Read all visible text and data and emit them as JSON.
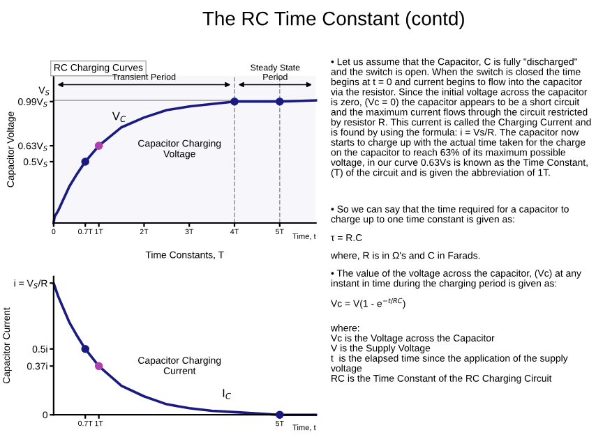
{
  "chart_data": [
    {
      "type": "line",
      "title": "RC Charging Curves",
      "xlabel": "Time Constants, T",
      "ylabel": "Capacitor Voltage",
      "xlim": [
        0,
        5.8
      ],
      "xticks": [
        0,
        {
          "value": 0.7,
          "label": "0.7T"
        },
        {
          "value": 1,
          "label": "1T"
        },
        {
          "value": 2,
          "label": "2T"
        },
        {
          "value": 3,
          "label": "3T"
        },
        {
          "value": 4,
          "label": "4T"
        },
        {
          "value": 5,
          "label": "5T"
        }
      ],
      "ylim": [
        0,
        1.2
      ],
      "yticks": [
        {
          "value": 0.5,
          "label": "0.5V$_{S}$"
        },
        {
          "value": 0.63,
          "label": "0.63V$_{S}$"
        },
        {
          "value": 0.99,
          "label": "0.99V$_{S}$"
        }
      ],
      "series": [
        {
          "type": "line",
          "color": "#1a1a80",
          "marker": "none",
          "x": [
            0,
            0.02,
            0.1,
            0.2,
            0.35,
            0.5,
            0.7,
            1,
            1.5,
            2,
            2.5,
            3,
            3.5,
            4,
            5,
            5.8
          ],
          "values": [
            0,
            0.05,
            0.1,
            0.18,
            0.3,
            0.39,
            0.5,
            0.63,
            0.78,
            0.86,
            0.92,
            0.95,
            0.97,
            0.99,
            0.99,
            1
          ]
        },
        {
          "type": "scatter",
          "marker": "circle",
          "x": [
            0.7,
            1,
            4,
            5
          ],
          "values": [
            0.5,
            0.63,
            0.99,
            0.99
          ],
          "colors": [
            "#1a1a80",
            "#b040b0",
            "#1a1a80",
            "#1a1a80"
          ]
        }
      ],
      "ref_lines": [
        {
          "axis": "y",
          "value": 1,
          "label": "V$_{S}$",
          "color": "#999999",
          "line_style": "solid"
        },
        {
          "axis": "x",
          "value": 4,
          "color": "#999999",
          "line_style": "dashed"
        },
        {
          "axis": "x",
          "value": 5,
          "color": "#999999",
          "line_style": "dashed"
        }
      ],
      "bands": [
        {
          "axis": "x",
          "from": 0,
          "to": 4,
          "label": "Transient Period",
          "color": "#f6f6fb"
        },
        {
          "axis": "x",
          "from": 4,
          "to": 5.8,
          "label": "Steady State\nPeriod",
          "color": "#f6f6fb"
        }
      ],
      "annotations": [
        "V$_{C}$",
        "Capacitor Charging\nVoltage",
        "Time, t"
      ],
      "grid": false
    },
    {
      "type": "line",
      "ylabel": "Capacitor Current",
      "xlim": [
        0,
        5.8
      ],
      "xticks": [
        {
          "value": 0.7,
          "label": "0.7T"
        },
        {
          "value": 1,
          "label": "1T"
        },
        {
          "value": 5,
          "label": "5T"
        }
      ],
      "ylim": [
        0,
        1.05
      ],
      "yticks": [
        0,
        {
          "value": 0.37,
          "label": "0.37i"
        },
        {
          "value": 0.5,
          "label": "0.5i"
        },
        {
          "value": 1,
          "label": "i = V$_{S}$/R"
        }
      ],
      "series": [
        {
          "type": "line",
          "color": "#1a1a80",
          "marker": "none",
          "x": [
            0,
            0.1,
            0.2,
            0.35,
            0.5,
            0.7,
            1,
            1.5,
            2,
            2.5,
            3,
            3.5,
            4,
            4.5,
            5,
            5.8
          ],
          "values": [
            1,
            0.9,
            0.82,
            0.7,
            0.61,
            0.5,
            0.37,
            0.22,
            0.14,
            0.08,
            0.05,
            0.03,
            0.02,
            0.01,
            0,
            0
          ]
        },
        {
          "type": "scatter",
          "marker": "circle",
          "x": [
            0.7,
            1,
            5
          ],
          "values": [
            0.5,
            0.37,
            0
          ],
          "colors": [
            "#1a1a80",
            "#b040b0",
            "#1a1a80"
          ]
        }
      ],
      "annotations": [
        "Capacitor Charging\nCurrent",
        "I$_{C}$",
        "Time, t"
      ],
      "grid": false
    },
    {
      "type": "other",
      "title": "The RC Time Constant (contd)",
      "annotations": [
        "• Let us assume that the Capacitor, C is fully \"discharged\" and the switch is open. When the switch is closed the time begins at t = 0 and current begins to flow into the capacitor via the resistor. Since the initial voltage across the capacitor is zero, (Vc = 0) the capacitor appears to be a short circuit and the maximum current flows through the circuit restricted by resistor R. This current is called the Charging Current and is found by using the formula: i = Vs/R. The capacitor now starts to charge up with the actual time taken for the charge on the capacitor to reach 63% of its maximum possible voltage, in our curve 0.63Vs is known as the Time Constant, (T) of the circuit and is given the abbreviation of 1T.",
        "• So we can say that the time required for a capacitor to charge up to one time constant is given as:",
        "τ = R.C",
        "where, R is in Ω's and C in Farads.",
        "• The value of the voltage across the capacitor, (Vc) at any instant in time during the charging period is given as:",
        "Vc = V(1 - e$^{−t/RC}$)",
        "where:\nVc is the Voltage across the Capacitor\nV is the Supply Voltage\nt  is the elapsed time since the application of the supply voltage\nRC is the Time Constant of the RC Charging Circuit"
      ]
    }
  ]
}
